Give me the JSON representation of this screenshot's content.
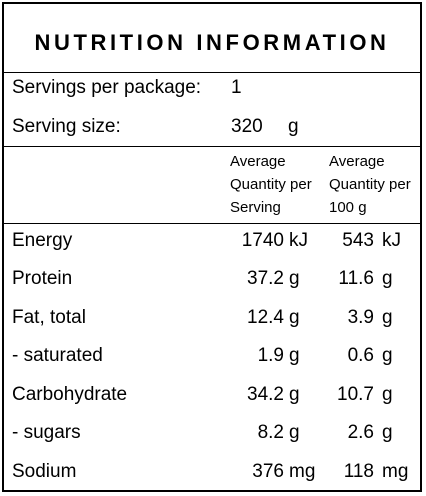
{
  "title": "NUTRITION INFORMATION",
  "servings": {
    "label": "Servings per package:",
    "value": "1"
  },
  "serving_size": {
    "label": "Serving size:",
    "value": "320",
    "unit": "g"
  },
  "headers": {
    "per_serving": "Average\nQuantity per\nServing",
    "per_100g": "Average\nQuantity per\n100 g"
  },
  "rows": [
    {
      "name": "Energy",
      "serving": "1740",
      "serving_unit": "kJ",
      "per100": "543",
      "per100_unit": "kJ"
    },
    {
      "name": "Protein",
      "serving": "37.2",
      "serving_unit": "g",
      "per100": "11.6",
      "per100_unit": "g"
    },
    {
      "name": "Fat, total",
      "serving": "12.4",
      "serving_unit": "g",
      "per100": "3.9",
      "per100_unit": "g"
    },
    {
      "name": "- saturated",
      "serving": "1.9",
      "serving_unit": "g",
      "per100": "0.6",
      "per100_unit": "g"
    },
    {
      "name": "Carbohydrate",
      "serving": "34.2",
      "serving_unit": "g",
      "per100": "10.7",
      "per100_unit": "g"
    },
    {
      "name": "- sugars",
      "serving": "8.2",
      "serving_unit": "g",
      "per100": "2.6",
      "per100_unit": "g"
    },
    {
      "name": "Sodium",
      "serving": "376",
      "serving_unit": "mg",
      "per100": "118",
      "per100_unit": "mg"
    }
  ]
}
